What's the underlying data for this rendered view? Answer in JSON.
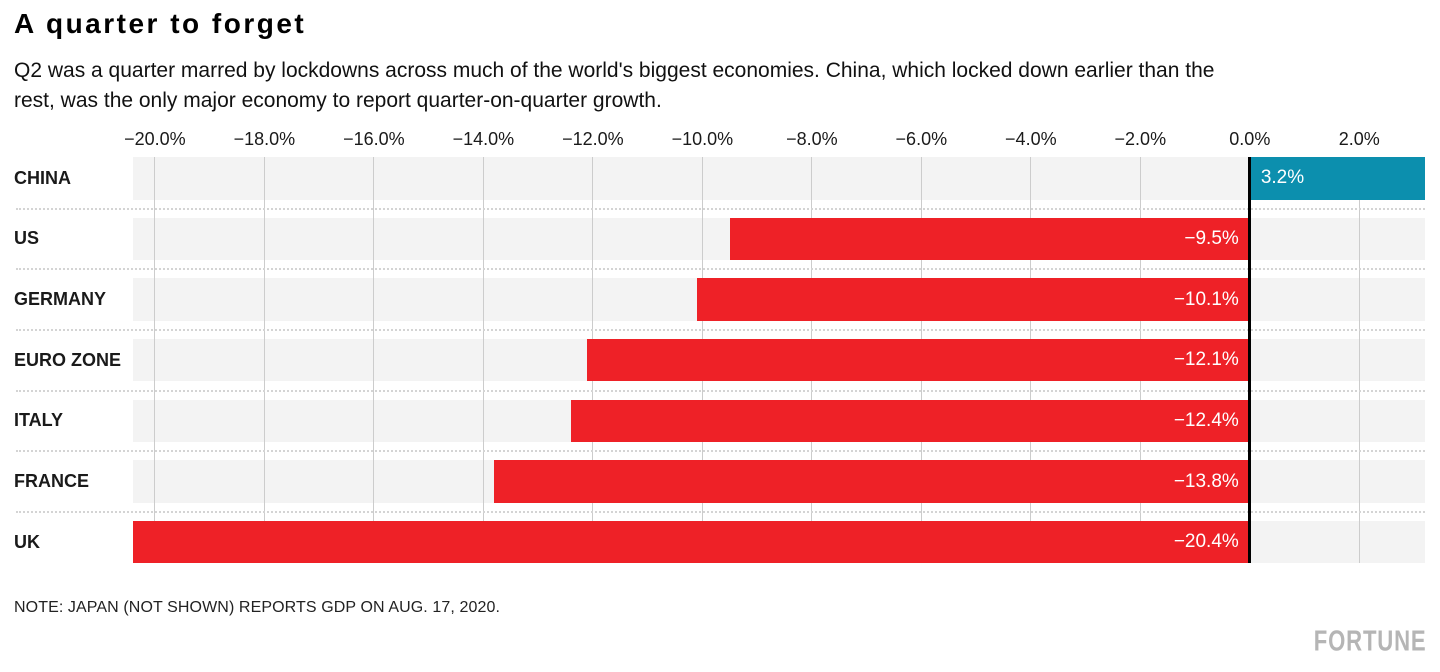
{
  "header": {
    "title": "A quarter to forget",
    "subtitle_lines": [
      "Q2 was a quarter marred by lockdowns across much of the world's biggest economies. China, which locked down earlier than the",
      "rest, was the only major economy to report quarter-on-quarter growth."
    ]
  },
  "note": "NOTE: JAPAN (NOT SHOWN) REPORTS GDP ON AUG. 17, 2020.",
  "brand": "FORTUNE",
  "colors": {
    "positive_bar": "#0c8fae",
    "negative_bar": "#ee2127",
    "row_background": "#f3f3f3",
    "gridline": "#cccccc",
    "zero_line": "#000000",
    "bar_label": "#ffffff"
  },
  "chart_data": {
    "type": "bar",
    "orientation": "horizontal",
    "title": "A quarter to forget",
    "subtitle": "Q2 was a quarter marred by lockdowns across much of the world's biggest economies. China, which locked down earlier than the rest, was the only major economy to report quarter-on-quarter growth.",
    "series_name": "Q2 quarter-on-quarter GDP growth",
    "categories": [
      "CHINA",
      "US",
      "GERMANY",
      "EURO ZONE",
      "ITALY",
      "FRANCE",
      "UK"
    ],
    "values": [
      3.2,
      -9.5,
      -10.1,
      -12.1,
      -12.4,
      -13.8,
      -20.4
    ],
    "value_labels": [
      "3.2%",
      "−9.5%",
      "−10.1%",
      "−12.1%",
      "−12.4%",
      "−13.8%",
      "−20.4%"
    ],
    "xlim": [
      -20.4,
      3.2
    ],
    "ticks": [
      -20,
      -18,
      -16,
      -14,
      -12,
      -10,
      -8,
      -6,
      -4,
      -2,
      0,
      2
    ],
    "tick_labels": [
      "−20.0%",
      "−18.0%",
      "−16.0%",
      "−14.0%",
      "−12.0%",
      "−10.0%",
      "−8.0%",
      "−6.0%",
      "−4.0%",
      "−2.0%",
      "0.0%",
      "2.0%"
    ],
    "grid": true,
    "legend": false,
    "xlabel": "",
    "ylabel": ""
  }
}
